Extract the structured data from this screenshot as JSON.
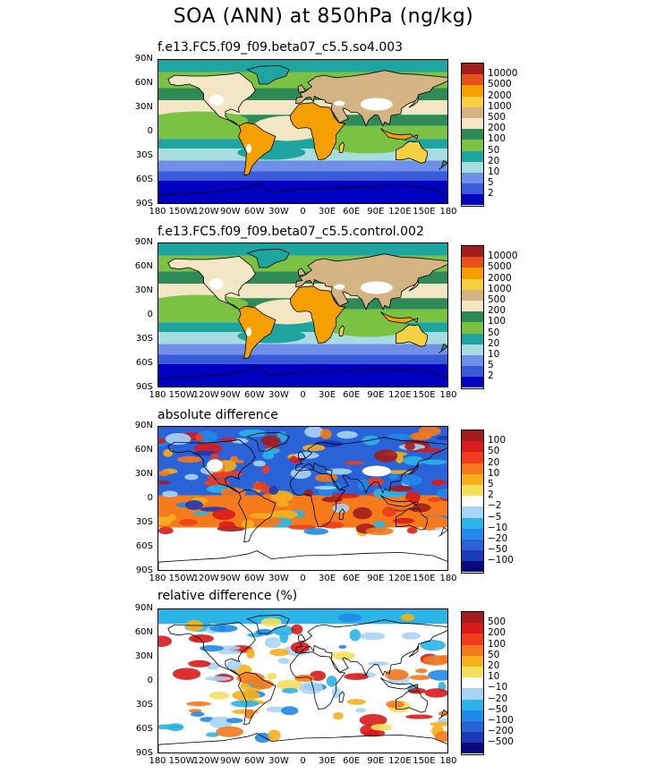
{
  "title": "SOA (ANN) at 850hPa (ng/kg)",
  "x_ticks": [
    "180",
    "150W",
    "120W",
    "90W",
    "60W",
    "30W",
    "0",
    "30E",
    "60E",
    "90E",
    "120E",
    "150E",
    "180"
  ],
  "y_ticks": [
    "90N",
    "60N",
    "30N",
    "0",
    "30S",
    "60S",
    "90S"
  ],
  "panels": [
    {
      "title": "f.e13.FC5.f09_f09.beta07_c5.5.so4.003",
      "kind": "abs"
    },
    {
      "title": "f.e13.FC5.f09_f09.beta07_c5.5.control.002",
      "kind": "abs"
    },
    {
      "title": "absolute difference",
      "kind": "diff"
    },
    {
      "title": "relative difference (%)",
      "kind": "rel"
    }
  ],
  "chart_data": [
    {
      "type": "heatmap",
      "title": "f.e13.FC5.f09_f09.beta07_c5.5.so4.003",
      "colorbar_levels": [
        "10000",
        "5000",
        "2000",
        "1000",
        "500",
        "200",
        "100",
        "50",
        "20",
        "10",
        "5",
        "2"
      ],
      "colorbar_colors": [
        "#a31c1c",
        "#e8501a",
        "#f5a000",
        "#f5d040",
        "#d4b483",
        "#f3e6c4",
        "#2e8b57",
        "#7cc242",
        "#1fa5a0",
        "#a8dde0",
        "#6f8fe8",
        "#3a5bd9",
        "#0000c0"
      ]
    },
    {
      "type": "heatmap",
      "title": "f.e13.FC5.f09_f09.beta07_c5.5.control.002",
      "colorbar_levels": [
        "10000",
        "5000",
        "2000",
        "1000",
        "500",
        "200",
        "100",
        "50",
        "20",
        "10",
        "5",
        "2"
      ],
      "colorbar_colors": [
        "#a31c1c",
        "#e8501a",
        "#f5a000",
        "#f5d040",
        "#d4b483",
        "#f3e6c4",
        "#2e8b57",
        "#7cc242",
        "#1fa5a0",
        "#a8dde0",
        "#6f8fe8",
        "#3a5bd9",
        "#0000c0"
      ]
    },
    {
      "type": "heatmap",
      "title": "absolute difference",
      "colorbar_levels": [
        "100",
        "50",
        "20",
        "10",
        "5",
        "2",
        "−2",
        "−5",
        "−10",
        "−20",
        "−50",
        "−100"
      ],
      "colorbar_colors": [
        "#a31c1c",
        "#d81b1b",
        "#f03c1c",
        "#f57a1c",
        "#f5b01c",
        "#f5e05c",
        "#ffffff",
        "#a8d4f5",
        "#2ab4e8",
        "#1f8ae8",
        "#2a62d8",
        "#1a3ab8",
        "#08087a"
      ]
    },
    {
      "type": "heatmap",
      "title": "relative difference (%)",
      "colorbar_levels": [
        "500",
        "200",
        "100",
        "50",
        "20",
        "10",
        "−10",
        "−20",
        "−50",
        "−100",
        "−200",
        "−500"
      ],
      "colorbar_colors": [
        "#a31c1c",
        "#d81b1b",
        "#f03c1c",
        "#f57a1c",
        "#f5b01c",
        "#f5e05c",
        "#ffffff",
        "#a8d4f5",
        "#2ab4e8",
        "#1f8ae8",
        "#2a62d8",
        "#1a3ab8",
        "#08087a"
      ]
    }
  ]
}
